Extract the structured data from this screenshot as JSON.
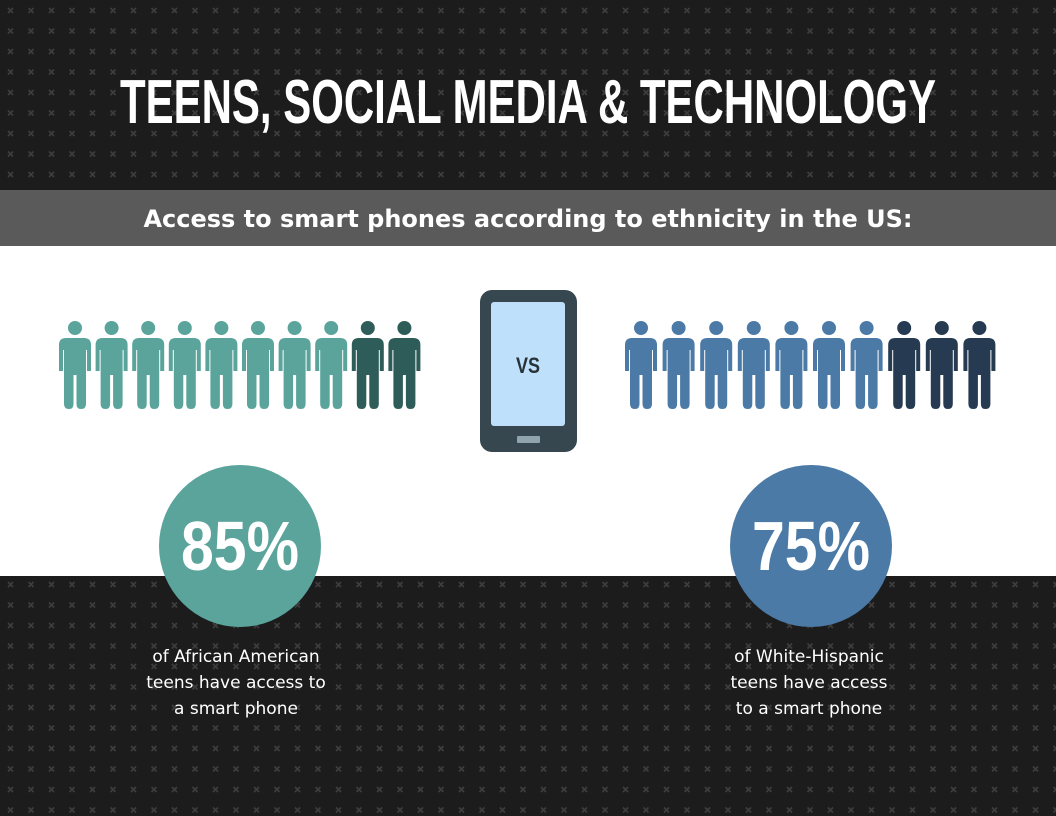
{
  "header": {
    "title": "TEENS, SOCIAL MEDIA & TECHNOLOGY",
    "subtitle": "Access to smart phones according to ethnicity in the US:"
  },
  "comparison": {
    "vs": "VS",
    "groups": [
      {
        "percent": "85%",
        "lines": [
          "of African American",
          "teens have access to",
          "a smart phone"
        ]
      },
      {
        "percent": "75%",
        "lines": [
          "of White-Hispanic",
          "teens have access",
          "to a smart phone"
        ]
      }
    ]
  }
}
